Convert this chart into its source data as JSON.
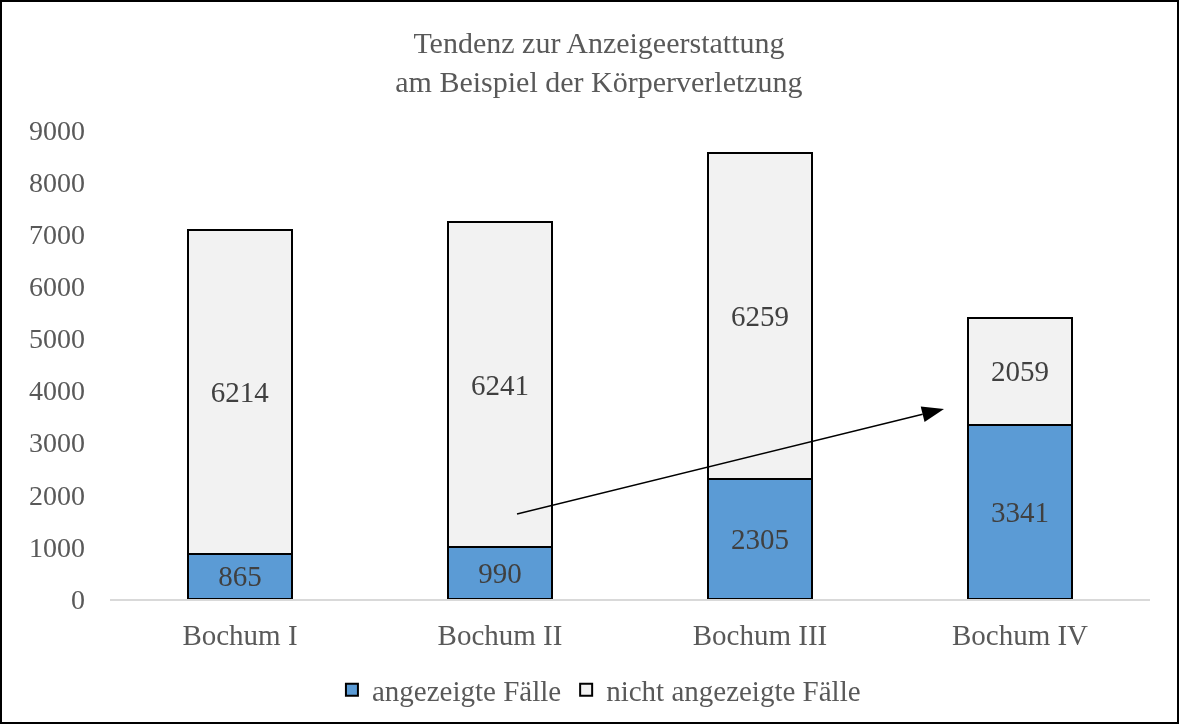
{
  "chart_data": {
    "type": "bar",
    "title": "Tendenz zur Anzeigeerstattung\nam Beispiel der Körperverletzung",
    "categories": [
      "Bochum I",
      "Bochum II",
      "Bochum III",
      "Bochum IV"
    ],
    "series": [
      {
        "name": "angezeigte Fälle",
        "color": "#5b9bd5",
        "values": [
          865,
          990,
          2305,
          3341
        ]
      },
      {
        "name": "nicht angezeigte Fälle",
        "color": "#f2f2f2",
        "values": [
          6214,
          6241,
          6259,
          2059
        ]
      }
    ],
    "stacked": true,
    "ylim": [
      0,
      9000
    ],
    "yticks": [
      0,
      1000,
      2000,
      3000,
      4000,
      5000,
      6000,
      7000,
      8000,
      9000
    ],
    "data_labels": true,
    "legend": "bottom"
  }
}
